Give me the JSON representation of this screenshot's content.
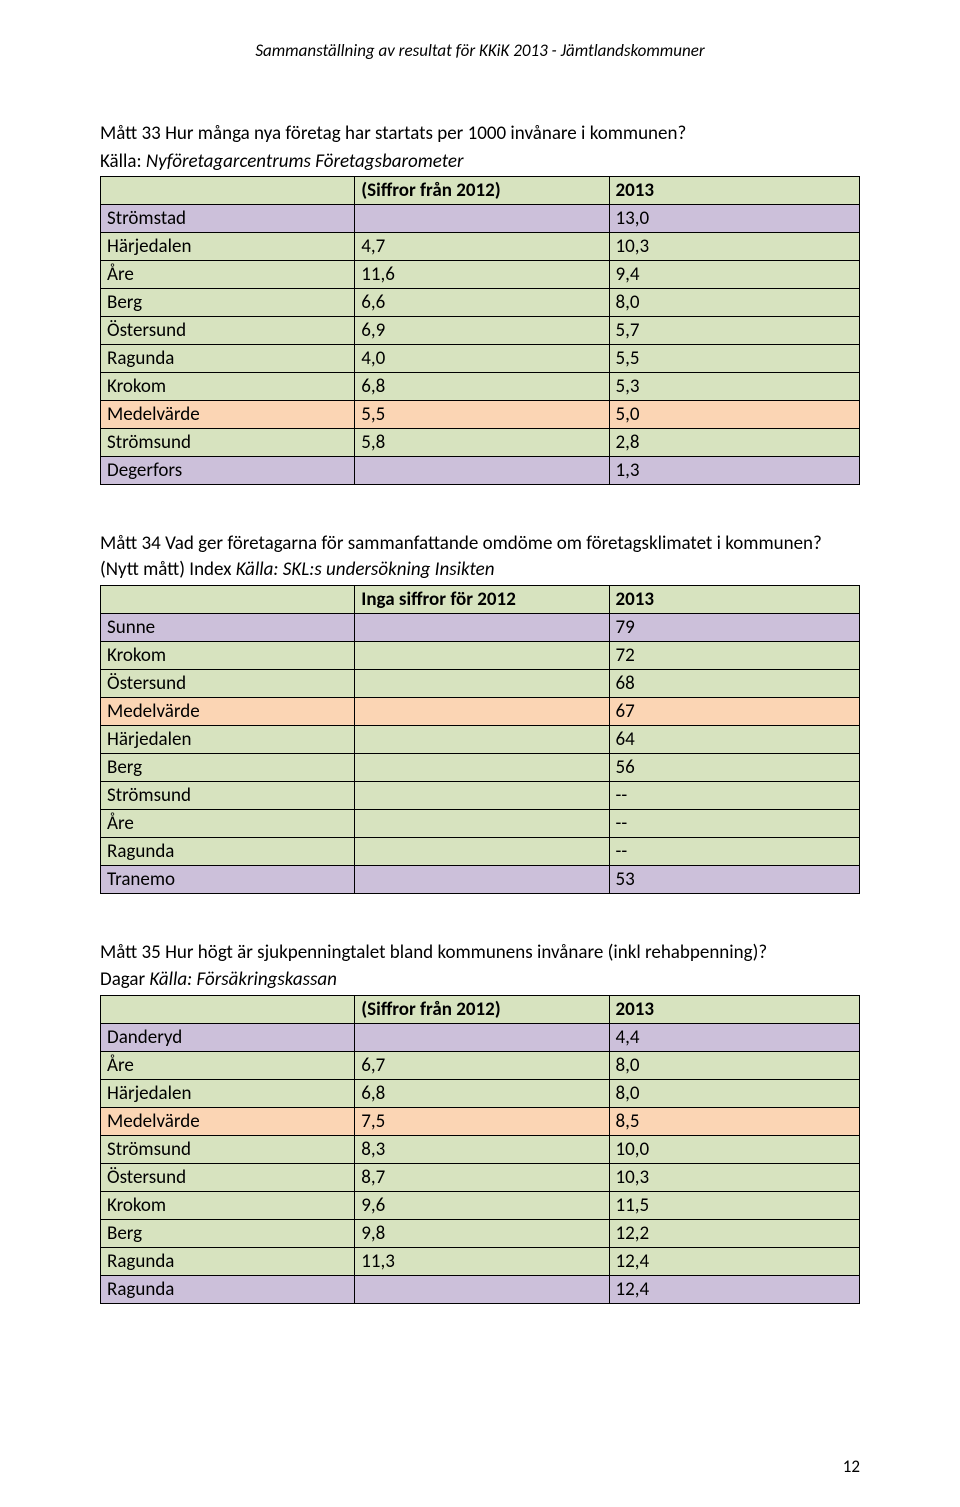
{
  "header": "Sammanställning av resultat för KKiK 2013 - Jämtlandskommuner",
  "pageNumber": "12",
  "tables": [
    {
      "title": "Mått 33 Hur många nya företag har startats per 1000 invånare i kommunen?",
      "source_pre": "Källa: ",
      "source_italic": "Nyföretagarcentrums Företagsbarometer",
      "header_row": {
        "col1": "",
        "col2": "(Siffror från 2012)",
        "col3": "2013",
        "bold": true
      },
      "rows": [
        {
          "label": "Strömstad",
          "v1": "",
          "v2": "13,0",
          "color": "purple"
        },
        {
          "label": "Härjedalen",
          "v1": "4,7",
          "v2": "10,3",
          "color": "green"
        },
        {
          "label": "Åre",
          "v1": "11,6",
          "v2": "9,4",
          "color": "green"
        },
        {
          "label": "Berg",
          "v1": "6,6",
          "v2": "8,0",
          "color": "green"
        },
        {
          "label": "Östersund",
          "v1": "6,9",
          "v2": "5,7",
          "color": "green"
        },
        {
          "label": "Ragunda",
          "v1": "4,0",
          "v2": "5,5",
          "color": "green"
        },
        {
          "label": "Krokom",
          "v1": "6,8",
          "v2": "5,3",
          "color": "green"
        },
        {
          "label": "Medelvärde",
          "v1": "5,5",
          "v2": "5,0",
          "color": "orange"
        },
        {
          "label": "Strömsund",
          "v1": "5,8",
          "v2": "2,8",
          "color": "green"
        },
        {
          "label": "Degerfors",
          "v1": "",
          "v2": "1,3",
          "color": "purple"
        }
      ]
    },
    {
      "title": "Mått 34 Vad ger företagarna för sammanfattande omdöme om företagsklimatet i kommunen? (Nytt mått) Index ",
      "source_italic": "Källa: SKL:s undersökning Insikten",
      "header_row": {
        "col1": "",
        "col2": "Inga siffror för 2012",
        "col3": "2013",
        "bold": true
      },
      "rows": [
        {
          "label": "Sunne",
          "v1": "",
          "v2": "79",
          "color": "purple"
        },
        {
          "label": "Krokom",
          "v1": "",
          "v2": "72",
          "color": "green"
        },
        {
          "label": "Östersund",
          "v1": "",
          "v2": "68",
          "color": "green"
        },
        {
          "label": "Medelvärde",
          "v1": "",
          "v2": "67",
          "color": "orange"
        },
        {
          "label": "Härjedalen",
          "v1": "",
          "v2": "64",
          "color": "green"
        },
        {
          "label": "Berg",
          "v1": "",
          "v2": "56",
          "color": "green"
        },
        {
          "label": "Strömsund",
          "v1": "",
          "v2": "--",
          "color": "green"
        },
        {
          "label": "Åre",
          "v1": "",
          "v2": "--",
          "color": "green"
        },
        {
          "label": "Ragunda",
          "v1": "",
          "v2": "--",
          "color": "green"
        },
        {
          "label": "Tranemo",
          "v1": "",
          "v2": "53",
          "color": "purple"
        }
      ]
    },
    {
      "title": "Mått 35 Hur högt är sjukpenningtalet bland kommunens invånare (inkl rehabpenning)?",
      "source_pre": "Dagar ",
      "source_italic": "Källa: Försäkringskassan",
      "header_row": {
        "col1": "",
        "col2": "(Siffror från 2012)",
        "col3": "2013",
        "bold": true
      },
      "rows": [
        {
          "label": "Danderyd",
          "v1": "",
          "v2": "4,4",
          "color": "purple"
        },
        {
          "label": "Åre",
          "v1": "6,7",
          "v2": "8,0",
          "color": "green"
        },
        {
          "label": "Härjedalen",
          "v1": "6,8",
          "v2": "8,0",
          "color": "green"
        },
        {
          "label": "Medelvärde",
          "v1": "7,5",
          "v2": "8,5",
          "color": "orange"
        },
        {
          "label": "Strömsund",
          "v1": "8,3",
          "v2": "10,0",
          "color": "green"
        },
        {
          "label": "Östersund",
          "v1": "8,7",
          "v2": "10,3",
          "color": "green"
        },
        {
          "label": "Krokom",
          "v1": "9,6",
          "v2": "11,5",
          "color": "green"
        },
        {
          "label": "Berg",
          "v1": "9,8",
          "v2": "12,2",
          "color": "green"
        },
        {
          "label": "Ragunda",
          "v1": "11,3",
          "v2": "12,4",
          "color": "green"
        },
        {
          "label": "Ragunda",
          "v1": "",
          "v2": "12,4",
          "color": "purple"
        }
      ]
    }
  ]
}
